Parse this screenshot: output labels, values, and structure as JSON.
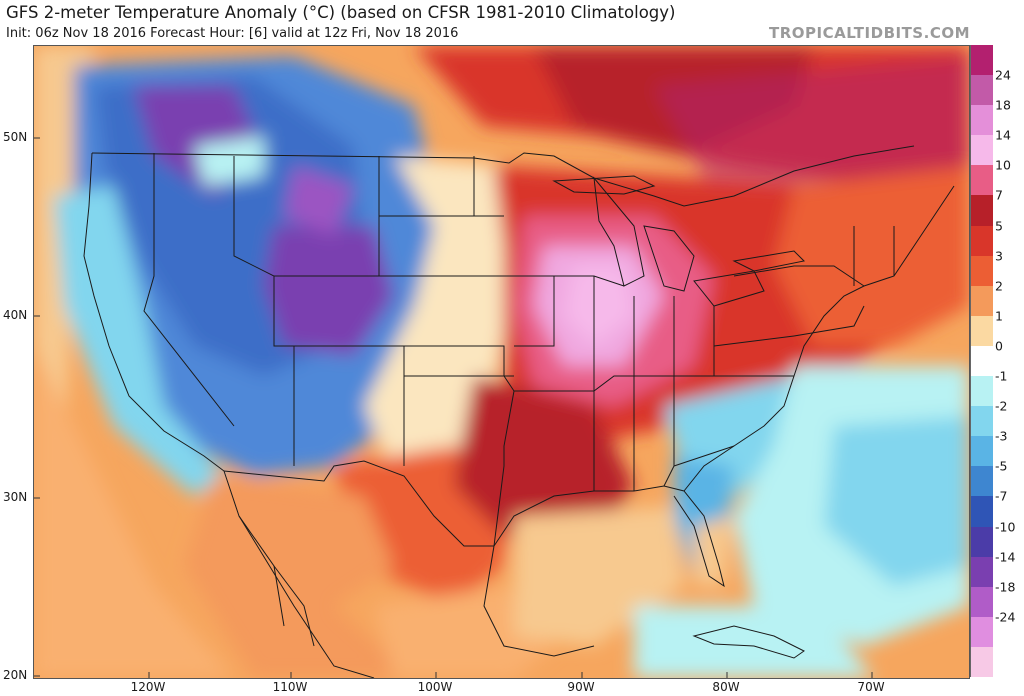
{
  "title": "GFS 2-meter Temperature Anomaly (°C) (based on CFSR 1981-2010 Climatology)",
  "subtitle": "Init: 06z Nov 18 2016   Forecast Hour: [6]   valid at 12z Fri, Nov 18 2016",
  "credit": "TROPICALTIDBITS.COM",
  "latitude_labels": [
    "50N",
    "40N",
    "30N",
    "20N"
  ],
  "longitude_labels": [
    "120W",
    "110W",
    "100W",
    "90W",
    "80W",
    "70W"
  ],
  "colorbar": {
    "labels": [
      "24",
      "18",
      "14",
      "10",
      "7",
      "5",
      "3",
      "2",
      "1",
      "0",
      "-1",
      "-2",
      "-3",
      "-5",
      "-7",
      "-10",
      "-14",
      "-18",
      "-24"
    ],
    "colors": [
      "#b3206f",
      "#c25aa8",
      "#e48fd9",
      "#f6b9ea",
      "#e85d86",
      "#b72029",
      "#d9362a",
      "#ec5e34",
      "#f49a5b",
      "#fbd9a2",
      "#ffffff",
      "#b8f2f3",
      "#82d6ee",
      "#5ab4e5",
      "#3e86d0",
      "#2f55b6",
      "#4b3ca8",
      "#7a3fb0",
      "#b05cc8",
      "#e08ee0",
      "#f7c9e6"
    ]
  },
  "map_colors": {
    "ocean_warm": "#f7c98f",
    "ocean_cool": "#b8f2f3",
    "west_cold": "#4f88d8",
    "rockies_very_cold": "#7a3fb0",
    "plains_neutral": "#fbe6bf",
    "east_warm": "#d9362a",
    "midwest_very_warm": "#f0a8e0",
    "border_line": "#1a1a1a"
  }
}
